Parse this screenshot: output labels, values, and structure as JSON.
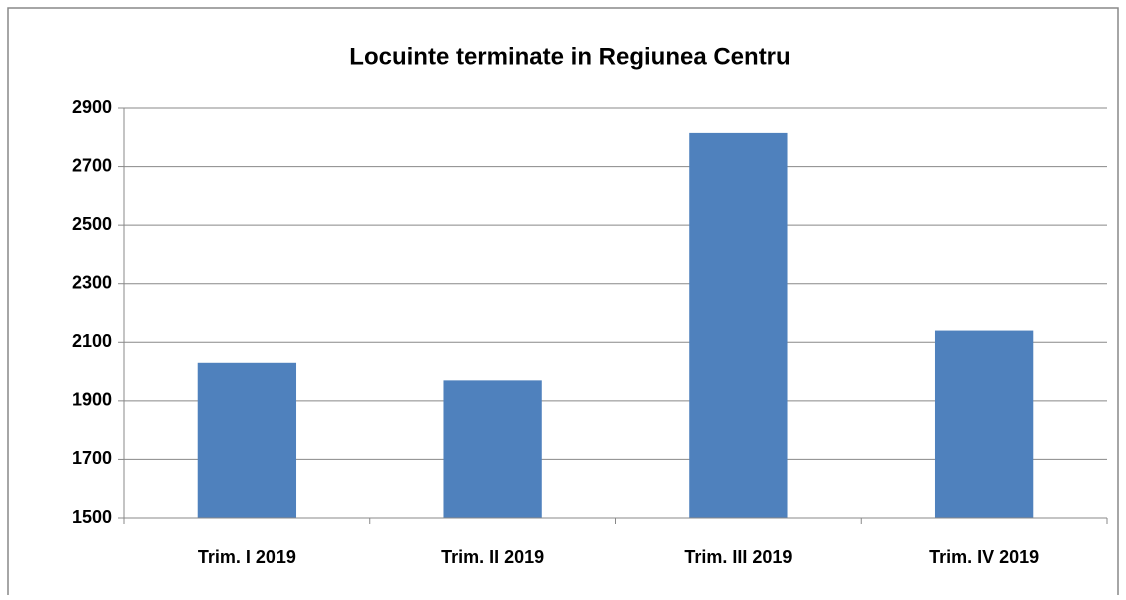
{
  "chart_data": {
    "type": "bar",
    "title": "Locuinte terminate in Regiunea Centru",
    "categories": [
      "Trim. I 2019",
      "Trim. II 2019",
      "Trim. III 2019",
      "Trim. IV 2019"
    ],
    "values": [
      2030,
      1970,
      2815,
      2140
    ],
    "color": "#4f81bd",
    "ylim": [
      1500,
      2900
    ],
    "yticks": [
      1500,
      1700,
      1900,
      2100,
      2300,
      2500,
      2700,
      2900
    ],
    "grid": true
  }
}
